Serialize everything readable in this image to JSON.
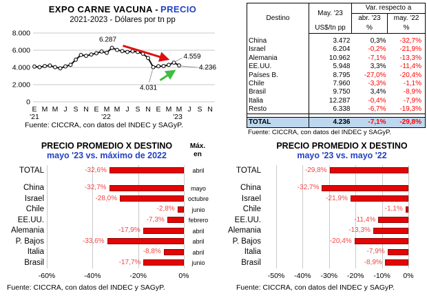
{
  "colors": {
    "accent_blue": "#2240c4",
    "bar_fill": "#e30505",
    "bar_border": "#8f0000",
    "negative_red": "#ff0000",
    "label_red": "#f34444",
    "total_row_bg": "#bdd7ee",
    "arrow_red": "#dd1111",
    "arrow_green": "#3dbe3d",
    "gridline": "#c9c9c9"
  },
  "chart_data": [
    {
      "type": "line",
      "title": "EXPO CARNE VACUNA - PRECIO",
      "title_black": "EXPO CARNE VACUNA -",
      "title_blue": "PRECIO",
      "subtitle": "2021-2023 - Dólares por tn pp",
      "x_description": "monthly, Jan 2021 - May 2023",
      "x_tick_labels": [
        "E",
        "M",
        "M",
        "J",
        "S",
        "N",
        "E",
        "M",
        "M",
        "J",
        "S",
        "N",
        "E",
        "M",
        "M",
        "J",
        "S",
        "N"
      ],
      "year_labels": [
        "'21",
        "'22",
        "'23"
      ],
      "ylim": [
        0,
        8000
      ],
      "yticks": [
        {
          "v": 8000,
          "label": "8.000"
        },
        {
          "v": 6000,
          "label": "6.000"
        },
        {
          "v": 4000,
          "label": "4.000"
        },
        {
          "v": 2000,
          "label": "2.000"
        },
        {
          "v": 0,
          "label": "0"
        }
      ],
      "values": [
        4100,
        4030,
        4160,
        4220,
        4030,
        3900,
        4120,
        4300,
        4900,
        5450,
        5350,
        5500,
        5650,
        5850,
        5700,
        6287,
        6034,
        5900,
        5800,
        5880,
        5800,
        5600,
        5100,
        4031,
        4140,
        4160,
        4300,
        4559,
        4236
      ],
      "annotations": [
        {
          "label": "6.287",
          "index": 15,
          "role": "peak"
        },
        {
          "label": "4.559",
          "index": 27,
          "role": "right-upper"
        },
        {
          "label": "4.236",
          "index": 28,
          "role": "right-end"
        },
        {
          "label": "4.031",
          "index": 23,
          "role": "below"
        }
      ],
      "source": "Fuente: CICCRA, con datos del INDEC y SAGyP."
    },
    {
      "type": "bar",
      "orientation": "horizontal",
      "title": "PRECIO PROMEDIO X DESTINO",
      "subtitle": "mayo '23 vs. máximo de 2022",
      "categories": [
        "TOTAL",
        "China",
        "Israel",
        "Chile",
        "EE.UU.",
        "Alemania",
        "P. Bajos",
        "Italia",
        "Brasil"
      ],
      "values": [
        -32.6,
        -32.7,
        -28.0,
        -2.8,
        -7.3,
        -17.9,
        -33.6,
        -8.8,
        -17.7
      ],
      "labels": [
        "-32,6%",
        "-32,7%",
        "-28,0%",
        "-2,8%",
        "-7,3%",
        "-17,9%",
        "-33,6%",
        "-8,8%",
        "-17,7%"
      ],
      "max_header_line1": "Máx.",
      "max_header_line2": "en",
      "max_months": [
        "abril",
        "mayo",
        "octubre",
        "junio",
        "febrero",
        "abril",
        "abril",
        "abril",
        "junio"
      ],
      "xlim": [
        -60,
        0
      ],
      "ticks": [
        {
          "v": -60,
          "label": "-60%"
        },
        {
          "v": -40,
          "label": "-40%"
        },
        {
          "v": -20,
          "label": "-20%"
        },
        {
          "v": 0,
          "label": "0%"
        }
      ],
      "source": "Fuente: CICCRA, con datos del INDEC y SAGyP."
    },
    {
      "type": "bar",
      "orientation": "horizontal",
      "title": "PRECIO PROMEDIO X DESTINO",
      "subtitle": "mayo '23 vs. mayo '22",
      "categories": [
        "TOTAL",
        "China",
        "Israel",
        "Chile",
        "EE.UU.",
        "Alemania",
        "P. Bajos",
        "Italia",
        "Brasil"
      ],
      "values": [
        -29.8,
        -32.7,
        -21.9,
        -1.1,
        -11.4,
        -13.3,
        -20.4,
        -7.9,
        -8.9
      ],
      "labels": [
        "-29,8%",
        "-32,7%",
        "-21,9%",
        "-1,1%",
        "-11,4%",
        "-13,3%",
        "-20,4%",
        "-7,9%",
        "-8,9%"
      ],
      "xlim": [
        -50,
        0
      ],
      "ticks": [
        {
          "v": -50,
          "label": "-50%"
        },
        {
          "v": -40,
          "label": "-40%"
        },
        {
          "v": -30,
          "label": "-30%"
        },
        {
          "v": -20,
          "label": "-20%"
        },
        {
          "v": -10,
          "label": "-10%"
        },
        {
          "v": 0,
          "label": "0%"
        }
      ],
      "source": "Fuente: CICCRA, con datos del INDEC y SAGyP."
    },
    {
      "type": "table",
      "col1_header": "Destino",
      "col2_header": "May. '23",
      "col2_unit": "US$/tn pp",
      "span_header": "Var.  respecto a",
      "col3_header": "abr. '23",
      "col4_header": "may. '22",
      "pct_header": "%",
      "rows": [
        [
          "China",
          "3.472",
          "0,3%",
          "-32,7%"
        ],
        [
          "Israel",
          "6.204",
          "-0,2%",
          "-21,9%"
        ],
        [
          "Alemania",
          "10.962",
          "-7,1%",
          "-13,3%"
        ],
        [
          "EE.UU.",
          "5.948",
          "3,3%",
          "-11,4%"
        ],
        [
          "Países B.",
          "8.795",
          "-27,0%",
          "-20,4%"
        ],
        [
          "Chile",
          "7.960",
          "-3,3%",
          "-1,1%"
        ],
        [
          "Brasil",
          "9.750",
          "3,4%",
          "-8,9%"
        ],
        [
          "Italia",
          "12.287",
          "-0,4%",
          "-7,9%"
        ],
        [
          "Resto",
          "6.338",
          "-6,7%",
          "-19,3%"
        ]
      ],
      "total_row": [
        "TOTAL",
        "4.236",
        "-7,1%",
        "-29,8%"
      ],
      "source": "Fuente: CICCRA, con datos del INDEC y SAGyP."
    }
  ]
}
